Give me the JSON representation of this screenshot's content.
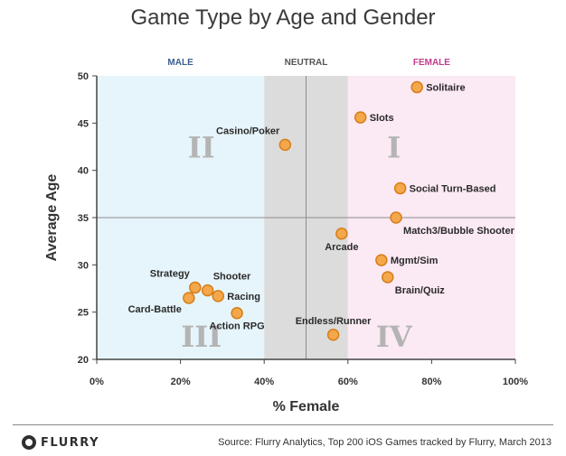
{
  "colors": {
    "male_zone": "#e6f5fb",
    "neutral_zone": "#dcdcdc",
    "female_zone": "#fbe9f4",
    "male_label": "#3b5f8f",
    "neutral_label": "#555555",
    "female_label": "#c23b8e",
    "point_fill": "#f4a84b",
    "point_stroke": "#d67e18"
  },
  "footer": {
    "logo_text": "FLURRY",
    "logo_icon": "flurry-logo-icon",
    "source": "Source: Flurry Analytics, Top 200 iOS Games tracked by Flurry, March 2013"
  },
  "chart_data": {
    "type": "scatter",
    "title": "Game Type by Age and Gender",
    "xlabel": "% Female",
    "ylabel": "Average Age",
    "xlim": [
      0,
      100
    ],
    "ylim": [
      20,
      50
    ],
    "x_ticks": [
      0,
      20,
      40,
      60,
      80,
      100
    ],
    "x_tick_labels": [
      "0%",
      "20%",
      "40%",
      "60%",
      "80%",
      "100%"
    ],
    "y_ticks": [
      20,
      25,
      30,
      35,
      40,
      45,
      50
    ],
    "y_tick_labels": [
      "20",
      "25",
      "30",
      "35",
      "40",
      "45",
      "50"
    ],
    "zones": [
      {
        "label": "MALE",
        "x_from": 0,
        "x_to": 40
      },
      {
        "label": "NEUTRAL",
        "x_from": 40,
        "x_to": 60
      },
      {
        "label": "FEMALE",
        "x_from": 60,
        "x_to": 100
      }
    ],
    "divider_x": 50,
    "divider_y": 35,
    "quadrants": [
      {
        "label": "I",
        "x": 71,
        "y": 42.5
      },
      {
        "label": "II",
        "x": 25,
        "y": 42.5
      },
      {
        "label": "III",
        "x": 25,
        "y": 22.5
      },
      {
        "label": "IV",
        "x": 71,
        "y": 22.5
      }
    ],
    "points": [
      {
        "name": "Solitaire",
        "x": 76.5,
        "y": 48.8,
        "label_pos": "right"
      },
      {
        "name": "Slots",
        "x": 63,
        "y": 45.6,
        "label_pos": "right"
      },
      {
        "name": "Casino/Poker",
        "x": 45,
        "y": 42.7,
        "label_pos": "above-left"
      },
      {
        "name": "Social Turn-Based",
        "x": 72.5,
        "y": 38.1,
        "label_pos": "right"
      },
      {
        "name": "Match3/Bubble Shooter",
        "x": 71.5,
        "y": 35.0,
        "label_pos": "below-right"
      },
      {
        "name": "Arcade",
        "x": 58.5,
        "y": 33.3,
        "label_pos": "below"
      },
      {
        "name": "Mgmt/Sim",
        "x": 68,
        "y": 30.5,
        "label_pos": "right"
      },
      {
        "name": "Brain/Quiz",
        "x": 69.5,
        "y": 28.7,
        "label_pos": "below-right"
      },
      {
        "name": "Strategy",
        "x": 23.5,
        "y": 27.6,
        "label_pos": "above-left"
      },
      {
        "name": "Shooter",
        "x": 26.5,
        "y": 27.3,
        "label_pos": "above-right"
      },
      {
        "name": "Racing",
        "x": 29,
        "y": 26.7,
        "label_pos": "right"
      },
      {
        "name": "Card-Battle",
        "x": 22,
        "y": 26.5,
        "label_pos": "below-left"
      },
      {
        "name": "Action RPG",
        "x": 33.5,
        "y": 24.9,
        "label_pos": "below"
      },
      {
        "name": "Endless/Runner",
        "x": 56.5,
        "y": 22.6,
        "label_pos": "above"
      }
    ]
  }
}
